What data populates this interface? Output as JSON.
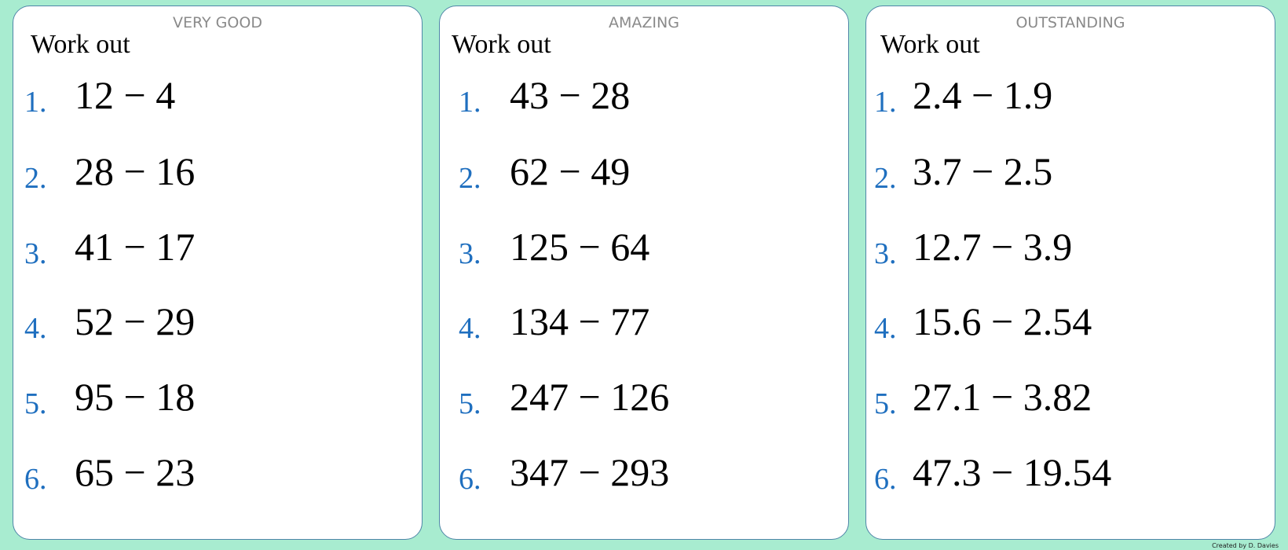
{
  "cards": [
    {
      "level": "VERY GOOD",
      "heading": "Work out",
      "questions": [
        {
          "number": "1.",
          "expression": "12 − 4"
        },
        {
          "number": "2.",
          "expression": "28 − 16"
        },
        {
          "number": "3.",
          "expression": "41 − 17"
        },
        {
          "number": "4.",
          "expression": "52 − 29"
        },
        {
          "number": "5.",
          "expression": "95 − 18"
        },
        {
          "number": "6.",
          "expression": "65 − 23"
        }
      ]
    },
    {
      "level": "AMAZING",
      "heading": "Work out",
      "questions": [
        {
          "number": "1.",
          "expression": "43 − 28"
        },
        {
          "number": "2.",
          "expression": "62 − 49"
        },
        {
          "number": "3.",
          "expression": "125 − 64"
        },
        {
          "number": "4.",
          "expression": "134 − 77"
        },
        {
          "number": "5.",
          "expression": "247 − 126"
        },
        {
          "number": "6.",
          "expression": "347 − 293"
        }
      ]
    },
    {
      "level": "OUTSTANDING",
      "heading": "Work out",
      "questions": [
        {
          "number": "1.",
          "expression": "2.4 − 1.9"
        },
        {
          "number": "2.",
          "expression": "3.7 − 2.5"
        },
        {
          "number": "3.",
          "expression": "12.7 − 3.9"
        },
        {
          "number": "4.",
          "expression": "15.6 − 2.54"
        },
        {
          "number": "5.",
          "expression": "27.1 − 3.82"
        },
        {
          "number": "6.",
          "expression": "47.3 − 19.54"
        }
      ]
    }
  ],
  "footer": "Created by D. Davies"
}
